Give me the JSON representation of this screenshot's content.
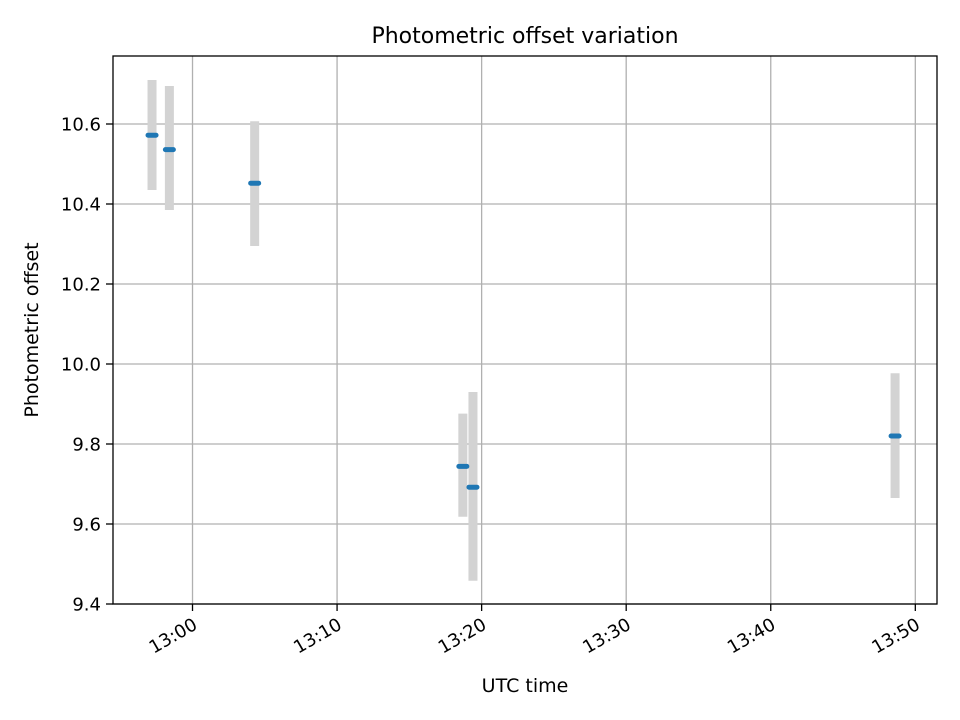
{
  "chart_data": {
    "type": "scatter",
    "title": "Photometric offset variation",
    "xlabel": "UTC time",
    "ylabel": "Photometric offset",
    "x_ticks": [
      "13:00",
      "13:10",
      "13:20",
      "13:30",
      "13:40",
      "13:50"
    ],
    "y_ticks": [
      "9.4",
      "9.6",
      "9.8",
      "10.0",
      "10.2",
      "10.4",
      "10.6"
    ],
    "xlim": [
      "12:54.5",
      "13:51.5"
    ],
    "ylim": [
      9.4,
      10.77
    ],
    "grid": true,
    "points": [
      {
        "time": "12:57.2",
        "value": 10.572,
        "err_low": 10.435,
        "err_high": 10.71
      },
      {
        "time": "12:58.4",
        "value": 10.536,
        "err_low": 10.385,
        "err_high": 10.695
      },
      {
        "time": "13:04.3",
        "value": 10.452,
        "err_low": 10.295,
        "err_high": 10.607
      },
      {
        "time": "13:18.7",
        "value": 9.744,
        "err_low": 9.618,
        "err_high": 9.876
      },
      {
        "time": "13:19.4",
        "value": 9.692,
        "err_low": 9.458,
        "err_high": 9.93
      },
      {
        "time": "13:48.6",
        "value": 9.82,
        "err_low": 9.665,
        "err_high": 9.977
      }
    ],
    "colors": {
      "marker": "#1f77b4",
      "errorbar": "#d3d3d3",
      "grid": "#b0b0b0",
      "axis": "#000000"
    }
  }
}
